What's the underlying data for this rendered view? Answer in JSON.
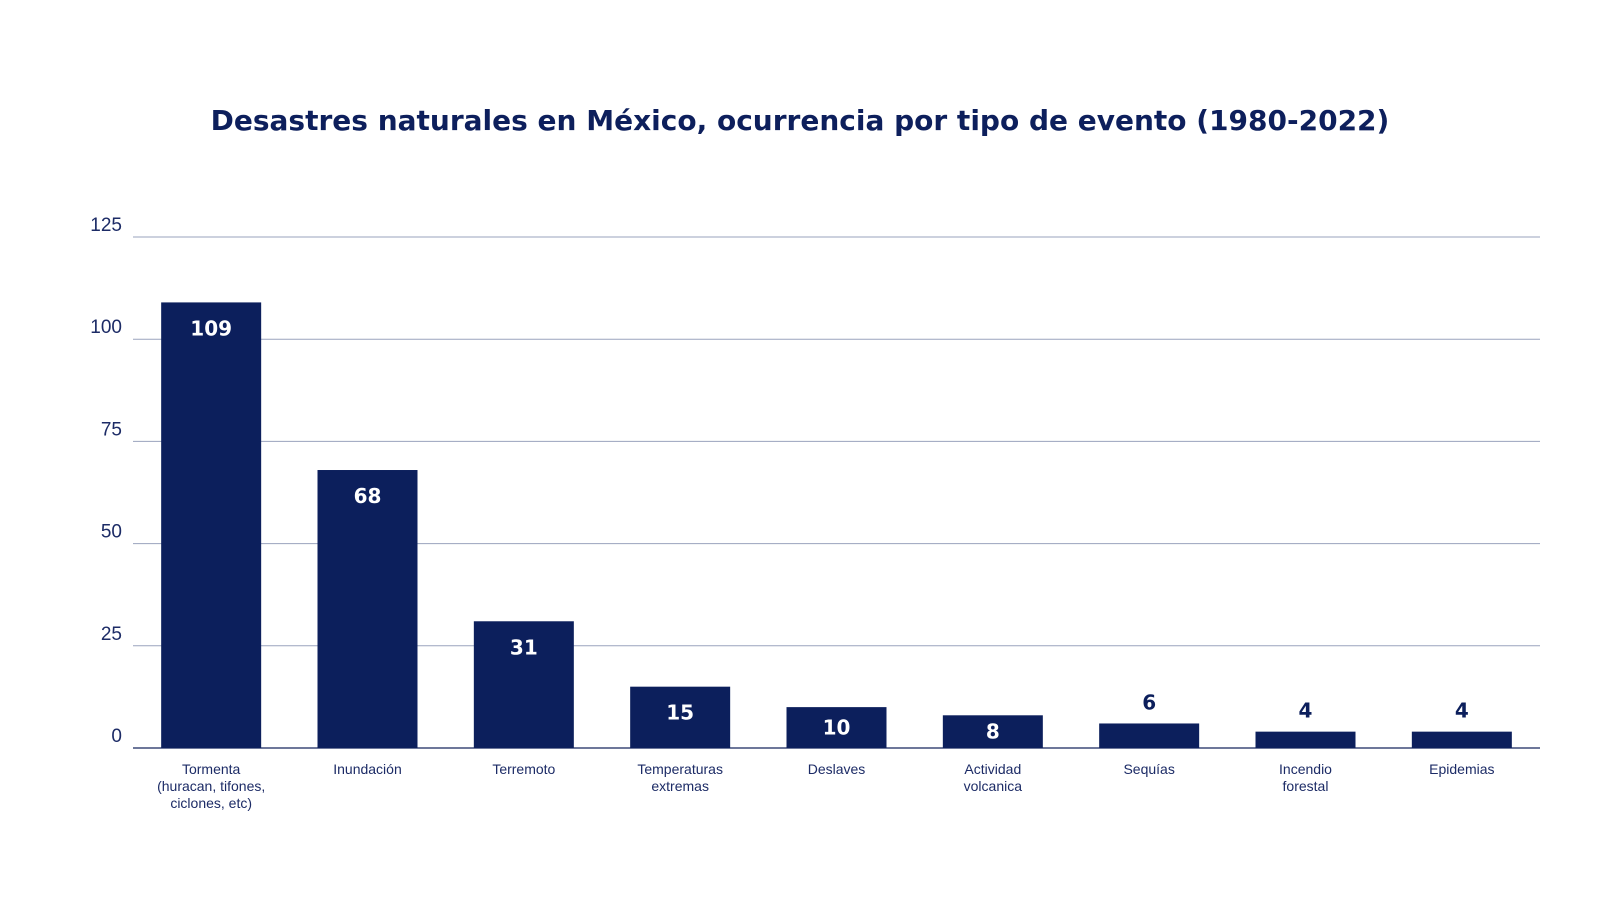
{
  "chart_data": {
    "type": "bar",
    "title": "Desastres naturales en México, ocurrencia por tipo de evento (1980-2022)",
    "categories": [
      [
        "Tormenta",
        "(huracan, tifones,",
        "ciclones, etc)"
      ],
      [
        "Inundación"
      ],
      [
        "Terremoto"
      ],
      [
        "Temperaturas",
        "extremas"
      ],
      [
        "Deslaves"
      ],
      [
        "Actividad",
        "volcanica"
      ],
      [
        "Sequías"
      ],
      [
        "Incendio",
        "forestal"
      ],
      [
        "Epidemias"
      ]
    ],
    "values": [
      109,
      68,
      31,
      15,
      10,
      8,
      6,
      4,
      4
    ],
    "ylim": [
      0,
      125
    ],
    "yticks": [
      0,
      25,
      50,
      75,
      100,
      125
    ],
    "grid": true,
    "legend": "none",
    "colors": {
      "bar": "#0c1f5c",
      "label_inside": "#ffffff",
      "label_outside": "#0c1f5c",
      "grid": "#9aa3bd",
      "axis": "#3d4a78"
    }
  }
}
